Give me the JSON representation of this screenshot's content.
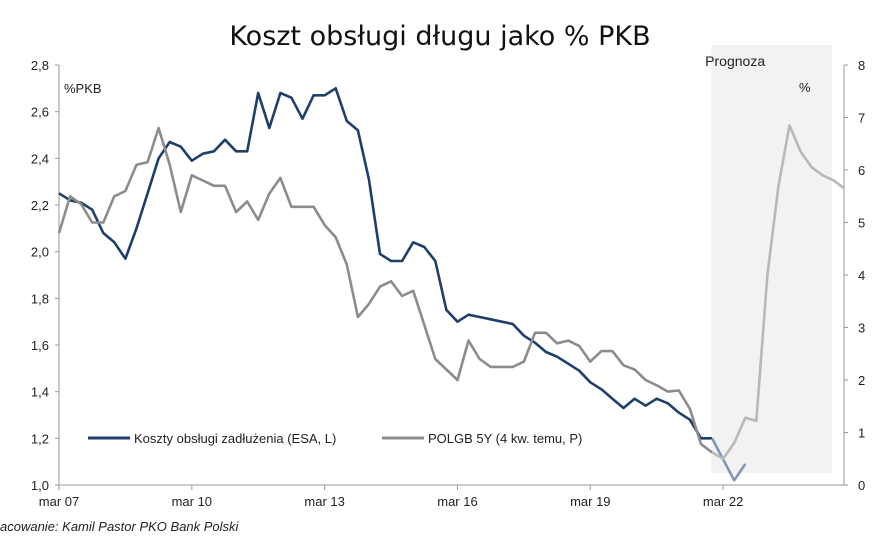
{
  "chart_data": {
    "type": "line",
    "title": "Koszt obsługi długu jako % PKB",
    "y_left_label": "%PKB",
    "y_right_label": "%",
    "x_ticks": [
      {
        "x": 2007.17,
        "label": "mar 07"
      },
      {
        "x": 2010.17,
        "label": "mar 10"
      },
      {
        "x": 2013.17,
        "label": "mar 13"
      },
      {
        "x": 2016.17,
        "label": "mar 16"
      },
      {
        "x": 2019.17,
        "label": "mar 19"
      },
      {
        "x": 2022.17,
        "label": "mar 22"
      }
    ],
    "x_range": [
      2007.17,
      2024.9
    ],
    "y_left_range": [
      1.0,
      2.8
    ],
    "y_left_ticks": [
      "1,0",
      "1,2",
      "1,4",
      "1,6",
      "1,8",
      "2,0",
      "2,2",
      "2,4",
      "2,6",
      "2,8"
    ],
    "y_right_range": [
      0,
      8
    ],
    "y_right_ticks": [
      "0",
      "1",
      "2",
      "3",
      "4",
      "5",
      "6",
      "7",
      "8"
    ],
    "forecast": {
      "label": "Prognoza",
      "x_start": 2021.9,
      "x_end": 2024.9
    },
    "legend_placement": "bottom-left",
    "series": [
      {
        "name": "Koszty obsługi zadłużenia (ESA, L)",
        "axis": "left",
        "color": "#1f3f6b",
        "points": [
          [
            2007.17,
            2.25
          ],
          [
            2007.42,
            2.22
          ],
          [
            2007.67,
            2.21
          ],
          [
            2007.92,
            2.18
          ],
          [
            2008.17,
            2.08
          ],
          [
            2008.42,
            2.04
          ],
          [
            2008.67,
            1.97
          ],
          [
            2008.92,
            2.1
          ],
          [
            2009.17,
            2.25
          ],
          [
            2009.42,
            2.4
          ],
          [
            2009.67,
            2.47
          ],
          [
            2009.92,
            2.45
          ],
          [
            2010.17,
            2.39
          ],
          [
            2010.42,
            2.42
          ],
          [
            2010.67,
            2.43
          ],
          [
            2010.92,
            2.48
          ],
          [
            2011.17,
            2.43
          ],
          [
            2011.42,
            2.43
          ],
          [
            2011.67,
            2.68
          ],
          [
            2011.92,
            2.53
          ],
          [
            2012.17,
            2.68
          ],
          [
            2012.42,
            2.66
          ],
          [
            2012.67,
            2.57
          ],
          [
            2012.92,
            2.67
          ],
          [
            2013.17,
            2.67
          ],
          [
            2013.42,
            2.7
          ],
          [
            2013.67,
            2.56
          ],
          [
            2013.92,
            2.52
          ],
          [
            2014.17,
            2.31
          ],
          [
            2014.42,
            1.99
          ],
          [
            2014.67,
            1.96
          ],
          [
            2014.92,
            1.96
          ],
          [
            2015.17,
            2.04
          ],
          [
            2015.42,
            2.02
          ],
          [
            2015.67,
            1.96
          ],
          [
            2015.92,
            1.75
          ],
          [
            2016.17,
            1.7
          ],
          [
            2016.42,
            1.73
          ],
          [
            2016.67,
            1.72
          ],
          [
            2016.92,
            1.71
          ],
          [
            2017.17,
            1.7
          ],
          [
            2017.42,
            1.69
          ],
          [
            2017.67,
            1.64
          ],
          [
            2017.92,
            1.61
          ],
          [
            2018.17,
            1.57
          ],
          [
            2018.42,
            1.55
          ],
          [
            2018.67,
            1.52
          ],
          [
            2018.92,
            1.49
          ],
          [
            2019.17,
            1.44
          ],
          [
            2019.42,
            1.41
          ],
          [
            2019.67,
            1.37
          ],
          [
            2019.92,
            1.33
          ],
          [
            2020.17,
            1.37
          ],
          [
            2020.42,
            1.34
          ],
          [
            2020.67,
            1.37
          ],
          [
            2020.92,
            1.35
          ],
          [
            2021.17,
            1.31
          ],
          [
            2021.42,
            1.28
          ],
          [
            2021.67,
            1.2
          ],
          [
            2021.92,
            1.2
          ]
        ],
        "forecast_points": [
          [
            2021.92,
            1.2
          ],
          [
            2022.17,
            1.11
          ],
          [
            2022.42,
            1.02
          ],
          [
            2022.67,
            1.09
          ]
        ]
      },
      {
        "name": "POLGB 5Y (4 kw. temu, P)",
        "axis": "right",
        "color": "#8c8c8c",
        "points": [
          [
            2007.17,
            4.8
          ],
          [
            2007.42,
            5.5
          ],
          [
            2007.67,
            5.35
          ],
          [
            2007.92,
            5.0
          ],
          [
            2008.17,
            5.0
          ],
          [
            2008.42,
            5.5
          ],
          [
            2008.67,
            5.6
          ],
          [
            2008.92,
            6.1
          ],
          [
            2009.17,
            6.15
          ],
          [
            2009.42,
            6.8
          ],
          [
            2009.67,
            6.1
          ],
          [
            2009.92,
            5.2
          ],
          [
            2010.17,
            5.9
          ],
          [
            2010.42,
            5.8
          ],
          [
            2010.67,
            5.7
          ],
          [
            2010.92,
            5.7
          ],
          [
            2011.17,
            5.2
          ],
          [
            2011.42,
            5.4
          ],
          [
            2011.67,
            5.05
          ],
          [
            2011.92,
            5.55
          ],
          [
            2012.17,
            5.85
          ],
          [
            2012.42,
            5.3
          ],
          [
            2012.67,
            5.3
          ],
          [
            2012.92,
            5.3
          ],
          [
            2013.17,
            4.95
          ],
          [
            2013.42,
            4.72
          ],
          [
            2013.67,
            4.2
          ],
          [
            2013.92,
            3.2
          ],
          [
            2014.17,
            3.45
          ],
          [
            2014.42,
            3.78
          ],
          [
            2014.67,
            3.88
          ],
          [
            2014.92,
            3.6
          ],
          [
            2015.17,
            3.7
          ],
          [
            2015.42,
            3.05
          ],
          [
            2015.67,
            2.4
          ],
          [
            2015.92,
            2.2
          ],
          [
            2016.17,
            2.0
          ],
          [
            2016.42,
            2.75
          ],
          [
            2016.67,
            2.4
          ],
          [
            2016.92,
            2.25
          ],
          [
            2017.17,
            2.25
          ],
          [
            2017.42,
            2.25
          ],
          [
            2017.67,
            2.35
          ],
          [
            2017.92,
            2.9
          ],
          [
            2018.17,
            2.9
          ],
          [
            2018.42,
            2.7
          ],
          [
            2018.67,
            2.75
          ],
          [
            2018.92,
            2.65
          ],
          [
            2019.17,
            2.35
          ],
          [
            2019.42,
            2.55
          ],
          [
            2019.67,
            2.55
          ],
          [
            2019.92,
            2.28
          ],
          [
            2020.17,
            2.2
          ],
          [
            2020.42,
            2.0
          ],
          [
            2020.67,
            1.9
          ],
          [
            2020.92,
            1.78
          ],
          [
            2021.17,
            1.8
          ],
          [
            2021.42,
            1.45
          ],
          [
            2021.67,
            0.78
          ],
          [
            2021.92,
            0.62
          ]
        ],
        "forecast_points": [
          [
            2021.92,
            0.62
          ],
          [
            2022.17,
            0.5
          ],
          [
            2022.42,
            0.8
          ],
          [
            2022.67,
            1.28
          ],
          [
            2022.92,
            1.22
          ],
          [
            2023.17,
            4.0
          ],
          [
            2023.42,
            5.7
          ],
          [
            2023.67,
            6.85
          ],
          [
            2023.92,
            6.35
          ],
          [
            2024.17,
            6.05
          ],
          [
            2024.42,
            5.9
          ],
          [
            2024.67,
            5.8
          ],
          [
            2024.9,
            5.65
          ]
        ]
      }
    ]
  },
  "source": "acowanie: Kamil Pastor PKO Bank Polski"
}
